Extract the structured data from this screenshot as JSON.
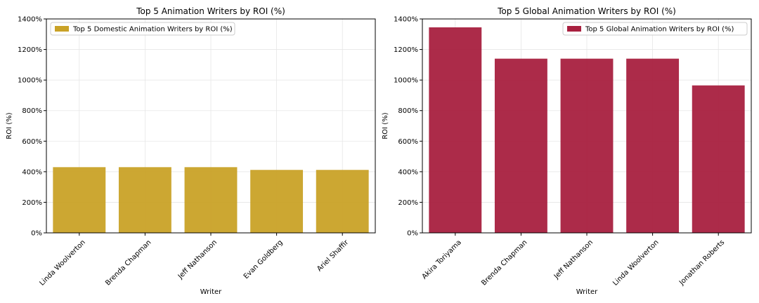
{
  "chart_data": [
    {
      "type": "bar",
      "title": "Top 5 Animation Writers by ROI (%)",
      "xlabel": "Writer",
      "ylabel": "ROI (%)",
      "ylim": [
        0,
        1400
      ],
      "yticks": [
        0,
        200,
        400,
        600,
        800,
        1000,
        1200,
        1400
      ],
      "ytick_labels": [
        "0%",
        "200%",
        "400%",
        "600%",
        "800%",
        "1000%",
        "1200%",
        "1400%"
      ],
      "categories": [
        "Linda Woolverton",
        "Brenda Chapman",
        "Jeff Nathanson",
        "Evan Goldberg",
        "Ariel Shaffir"
      ],
      "series": [
        {
          "name": "Top 5 Domestic Animation Writers by ROI (%)",
          "color": "#c9a227",
          "values": [
            430,
            430,
            430,
            412,
            412
          ]
        }
      ],
      "legend": "top-left",
      "grid": true
    },
    {
      "type": "bar",
      "title": "Top 5 Global Animation Writers by ROI (%)",
      "xlabel": "Writer",
      "ylabel": "ROI (%)",
      "ylim": [
        0,
        1400
      ],
      "yticks": [
        0,
        200,
        400,
        600,
        800,
        1000,
        1200,
        1400
      ],
      "ytick_labels": [
        "0%",
        "200%",
        "400%",
        "600%",
        "800%",
        "1000%",
        "1200%",
        "1400%"
      ],
      "categories": [
        "Akira Toriyama",
        "Brenda Chapman",
        "Jeff Nathanson",
        "Linda Woolverton",
        "Jonathan Roberts"
      ],
      "series": [
        {
          "name": "Top 5 Global Animation Writers by ROI (%)",
          "color": "#a8203f",
          "values": [
            1345,
            1140,
            1140,
            1140,
            965
          ]
        }
      ],
      "legend": "top-right",
      "grid": true
    }
  ]
}
